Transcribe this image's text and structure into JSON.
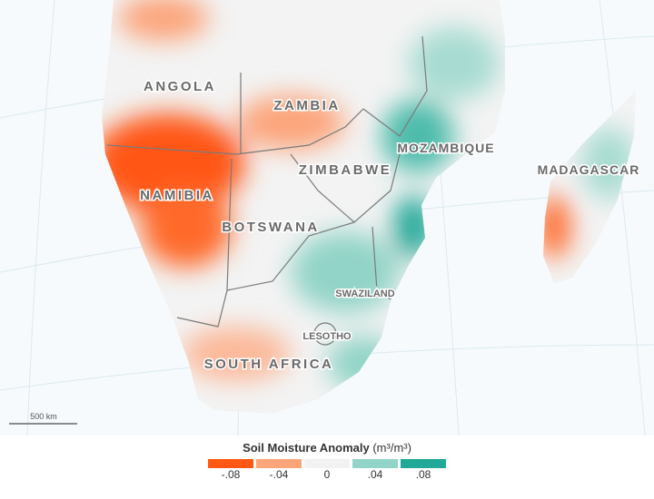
{
  "map": {
    "labels": [
      {
        "text": "ANGOLA",
        "kind": "big"
      },
      {
        "text": "ZAMBIA",
        "kind": "big"
      },
      {
        "text": "MOZAMBIQUE",
        "kind": "mid"
      },
      {
        "text": "MADAGASCAR",
        "kind": "mid"
      },
      {
        "text": "ZIMBABWE",
        "kind": "big"
      },
      {
        "text": "NAMIBIA",
        "kind": "big"
      },
      {
        "text": "BOTSWANA",
        "kind": "big"
      },
      {
        "text": "SWAZILAND",
        "kind": "small"
      },
      {
        "text": "LESOTHO",
        "kind": "small"
      },
      {
        "text": "SOUTH AFRICA",
        "kind": "big"
      }
    ],
    "scale_bar": "500 km"
  },
  "legend": {
    "title": "Soil Moisture Anomaly",
    "units": "(m³/m³)",
    "items": [
      {
        "label": "-.08",
        "color": "#ff5714"
      },
      {
        "label": "-.04",
        "color": "#fca47a"
      },
      {
        "label": "0",
        "color": "#f2f2f2"
      },
      {
        "label": ".04",
        "color": "#92d4c7"
      },
      {
        "label": ".08",
        "color": "#20a898"
      }
    ]
  }
}
